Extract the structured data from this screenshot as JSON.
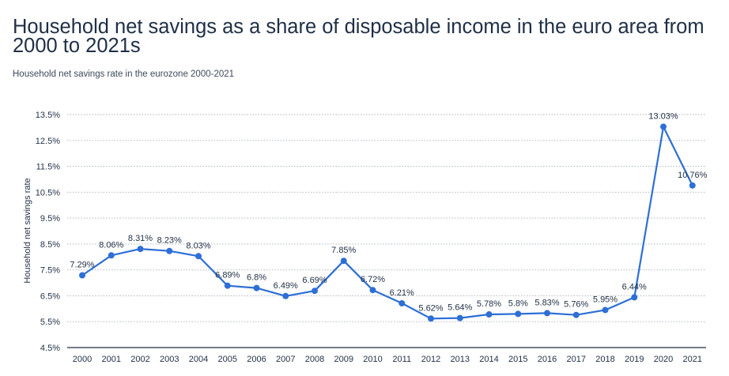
{
  "title": "Household net savings as a share of disposable income in the euro area from 2000 to 2021s",
  "subtitle": "Household net savings rate in the eurozone 2000-2021",
  "colors": {
    "line": "#2d6fd6",
    "grid": "#a8afb8",
    "axis": "#1f2f45"
  },
  "chart_data": {
    "type": "line",
    "title": "Household net savings as a share of disposable income in the euro area from 2000 to 2021s",
    "xlabel": "",
    "ylabel": "Household net savings rate",
    "ylim": [
      4.5,
      13.5
    ],
    "yticks": [
      "13.5%",
      "12.5%",
      "11.5%",
      "10.5%",
      "9.5%",
      "8.5%",
      "7.5%",
      "6.5%",
      "5.5%",
      "4.5%"
    ],
    "ytick_values": [
      13.5,
      12.5,
      11.5,
      10.5,
      9.5,
      8.5,
      7.5,
      6.5,
      5.5,
      4.5
    ],
    "categories": [
      "2000",
      "2001",
      "2002",
      "2003",
      "2004",
      "2005",
      "2006",
      "2007",
      "2008",
      "2009",
      "2010",
      "2011",
      "2012",
      "2013",
      "2014",
      "2015",
      "2016",
      "2017",
      "2018",
      "2019",
      "2020",
      "2021"
    ],
    "values": [
      7.29,
      8.06,
      8.31,
      8.23,
      8.03,
      6.89,
      6.8,
      6.49,
      6.69,
      7.85,
      6.72,
      6.21,
      5.62,
      5.64,
      5.78,
      5.8,
      5.83,
      5.76,
      5.95,
      6.44,
      13.03,
      10.76
    ],
    "labels": [
      "7.29%",
      "8.06%",
      "8.31%",
      "8.23%",
      "8.03%",
      "6.89%",
      "6.8%",
      "6.49%",
      "6.69%",
      "7.85%",
      "6.72%",
      "6.21%",
      "5.62%",
      "5.64%",
      "5.78%",
      "5.8%",
      "5.83%",
      "5.76%",
      "5.95%",
      "6.44%",
      "13.03%",
      "10.76%"
    ],
    "grid": true
  }
}
